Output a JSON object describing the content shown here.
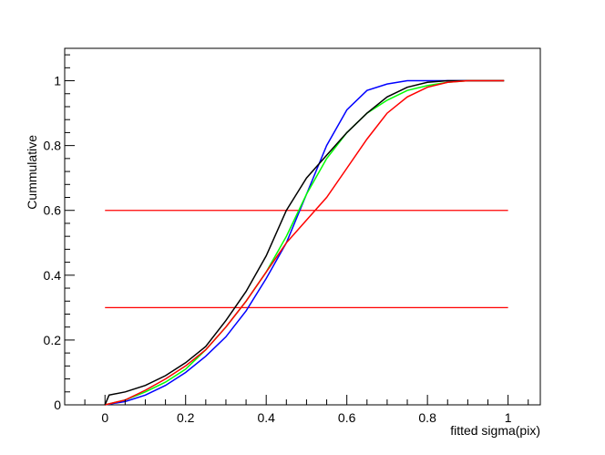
{
  "chart_data": {
    "type": "line",
    "xlabel": "fitted sigma(pix)",
    "ylabel": "Cummulative",
    "xlim": [
      -0.1,
      1.08
    ],
    "ylim": [
      0,
      1.1
    ],
    "grid": false,
    "x_ticks": [
      0,
      0.2,
      0.4,
      0.6,
      0.8,
      1
    ],
    "x_tick_labels": [
      "0",
      "0.2",
      "0.4",
      "0.6",
      "0.8",
      "1"
    ],
    "y_ticks": [
      0,
      0.2,
      0.4,
      0.6,
      0.8,
      1
    ],
    "y_tick_labels": [
      "0",
      "0.2",
      "0.4",
      "0.6",
      "0.8",
      "1"
    ],
    "series": [
      {
        "color": "#0000ff",
        "x": [
          0,
          0.05,
          0.1,
          0.15,
          0.2,
          0.25,
          0.3,
          0.35,
          0.4,
          0.45,
          0.5,
          0.55,
          0.6,
          0.65,
          0.7,
          0.75,
          0.8,
          0.9,
          0.99
        ],
        "y": [
          0,
          0.01,
          0.03,
          0.06,
          0.1,
          0.15,
          0.21,
          0.29,
          0.39,
          0.5,
          0.65,
          0.8,
          0.91,
          0.97,
          0.99,
          1.0,
          1.0,
          1.0,
          1.0
        ]
      },
      {
        "color": "#00ff00",
        "x": [
          0,
          0.05,
          0.1,
          0.15,
          0.2,
          0.25,
          0.3,
          0.35,
          0.4,
          0.45,
          0.5,
          0.55,
          0.6,
          0.65,
          0.7,
          0.75,
          0.8,
          0.85,
          0.9,
          0.99
        ],
        "y": [
          0,
          0.015,
          0.04,
          0.07,
          0.11,
          0.17,
          0.24,
          0.32,
          0.41,
          0.52,
          0.65,
          0.76,
          0.84,
          0.9,
          0.94,
          0.97,
          0.985,
          0.995,
          1.0,
          1.0
        ]
      },
      {
        "color": "#000000",
        "x": [
          0,
          0.01,
          0.05,
          0.1,
          0.15,
          0.2,
          0.25,
          0.3,
          0.35,
          0.4,
          0.45,
          0.48,
          0.5,
          0.55,
          0.6,
          0.65,
          0.7,
          0.75,
          0.8,
          0.85,
          0.9,
          0.99
        ],
        "y": [
          0,
          0.03,
          0.04,
          0.06,
          0.09,
          0.13,
          0.18,
          0.26,
          0.35,
          0.46,
          0.6,
          0.66,
          0.7,
          0.77,
          0.84,
          0.9,
          0.95,
          0.98,
          0.995,
          1.0,
          1.0,
          1.0
        ]
      },
      {
        "color": "#ff0000",
        "x": [
          0,
          0.05,
          0.1,
          0.15,
          0.2,
          0.25,
          0.3,
          0.35,
          0.4,
          0.45,
          0.5,
          0.55,
          0.6,
          0.65,
          0.7,
          0.75,
          0.8,
          0.85,
          0.9,
          0.99
        ],
        "y": [
          0,
          0.015,
          0.045,
          0.08,
          0.12,
          0.17,
          0.24,
          0.32,
          0.41,
          0.5,
          0.57,
          0.64,
          0.73,
          0.82,
          0.9,
          0.95,
          0.98,
          0.995,
          1.0,
          1.0
        ]
      }
    ],
    "hlines": [
      {
        "y": 0.6,
        "x_from": 0,
        "x_to": 1,
        "color": "#ff0000"
      },
      {
        "y": 0.3,
        "x_from": 0,
        "x_to": 1,
        "color": "#ff0000"
      }
    ]
  }
}
